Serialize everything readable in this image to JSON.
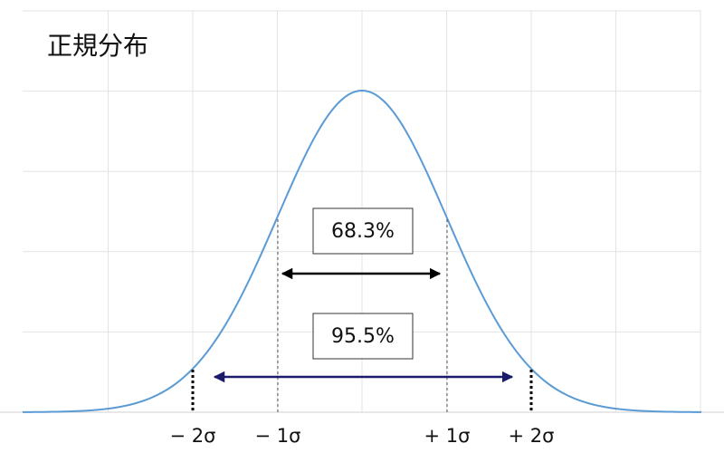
{
  "title": "正規分布",
  "annotations": {
    "one_sigma": "68.3%",
    "two_sigma": "95.5%"
  },
  "axis_labels": [
    "− 2σ",
    "− 1σ",
    "+ 1σ",
    "+ 2σ"
  ]
}
